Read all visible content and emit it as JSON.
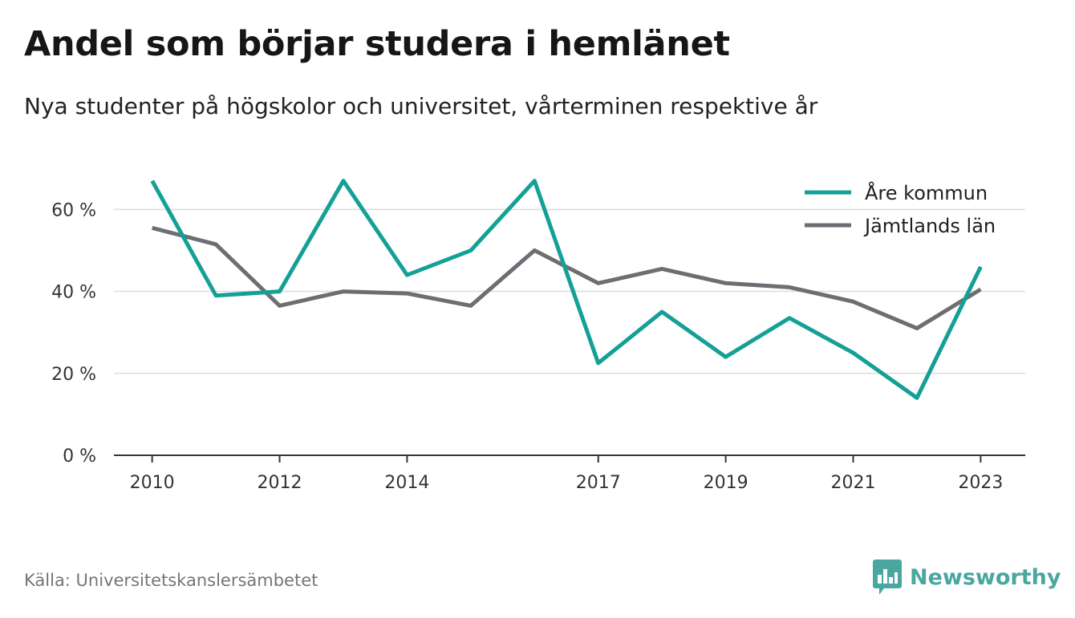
{
  "header": {
    "title": "Andel som börjar studera i hemlänet",
    "subtitle": "Nya studenter på högskolor och universitet, vårterminen respektive år"
  },
  "footer": {
    "source": "Källa: Universitetskanslersämbetet",
    "brand": "Newsworthy",
    "brand_icon": "bar-chart-speech-bubble-icon"
  },
  "chart_data": {
    "type": "line",
    "x": [
      2010,
      2011,
      2012,
      2013,
      2014,
      2015,
      2016,
      2017,
      2018,
      2019,
      2020,
      2021,
      2022,
      2023
    ],
    "x_tick_labels": [
      "2010",
      "2012",
      "2014",
      "2017",
      "2019",
      "2021",
      "2023"
    ],
    "x_tick_values": [
      2010,
      2012,
      2014,
      2017,
      2019,
      2021,
      2023
    ],
    "y_tick_labels": [
      "0 %",
      "20 %",
      "40 %",
      "60 %"
    ],
    "y_tick_values": [
      0,
      20,
      40,
      60
    ],
    "xlim": [
      2009.4,
      2023.7
    ],
    "ylim": [
      0,
      72
    ],
    "grid": "horizontal",
    "legend_position": "top-right",
    "series": [
      {
        "name": "Åre kommun",
        "color": "#14a096",
        "values": [
          67,
          39,
          40,
          67,
          44,
          50,
          67,
          22.5,
          35,
          24,
          33.5,
          25,
          14,
          46
        ]
      },
      {
        "name": "Jämtlands län",
        "color": "#6e6d73",
        "values": [
          55.5,
          51.5,
          36.5,
          40,
          39.5,
          36.5,
          50,
          42,
          45.5,
          42,
          41,
          37.5,
          31,
          40.5
        ]
      }
    ]
  }
}
